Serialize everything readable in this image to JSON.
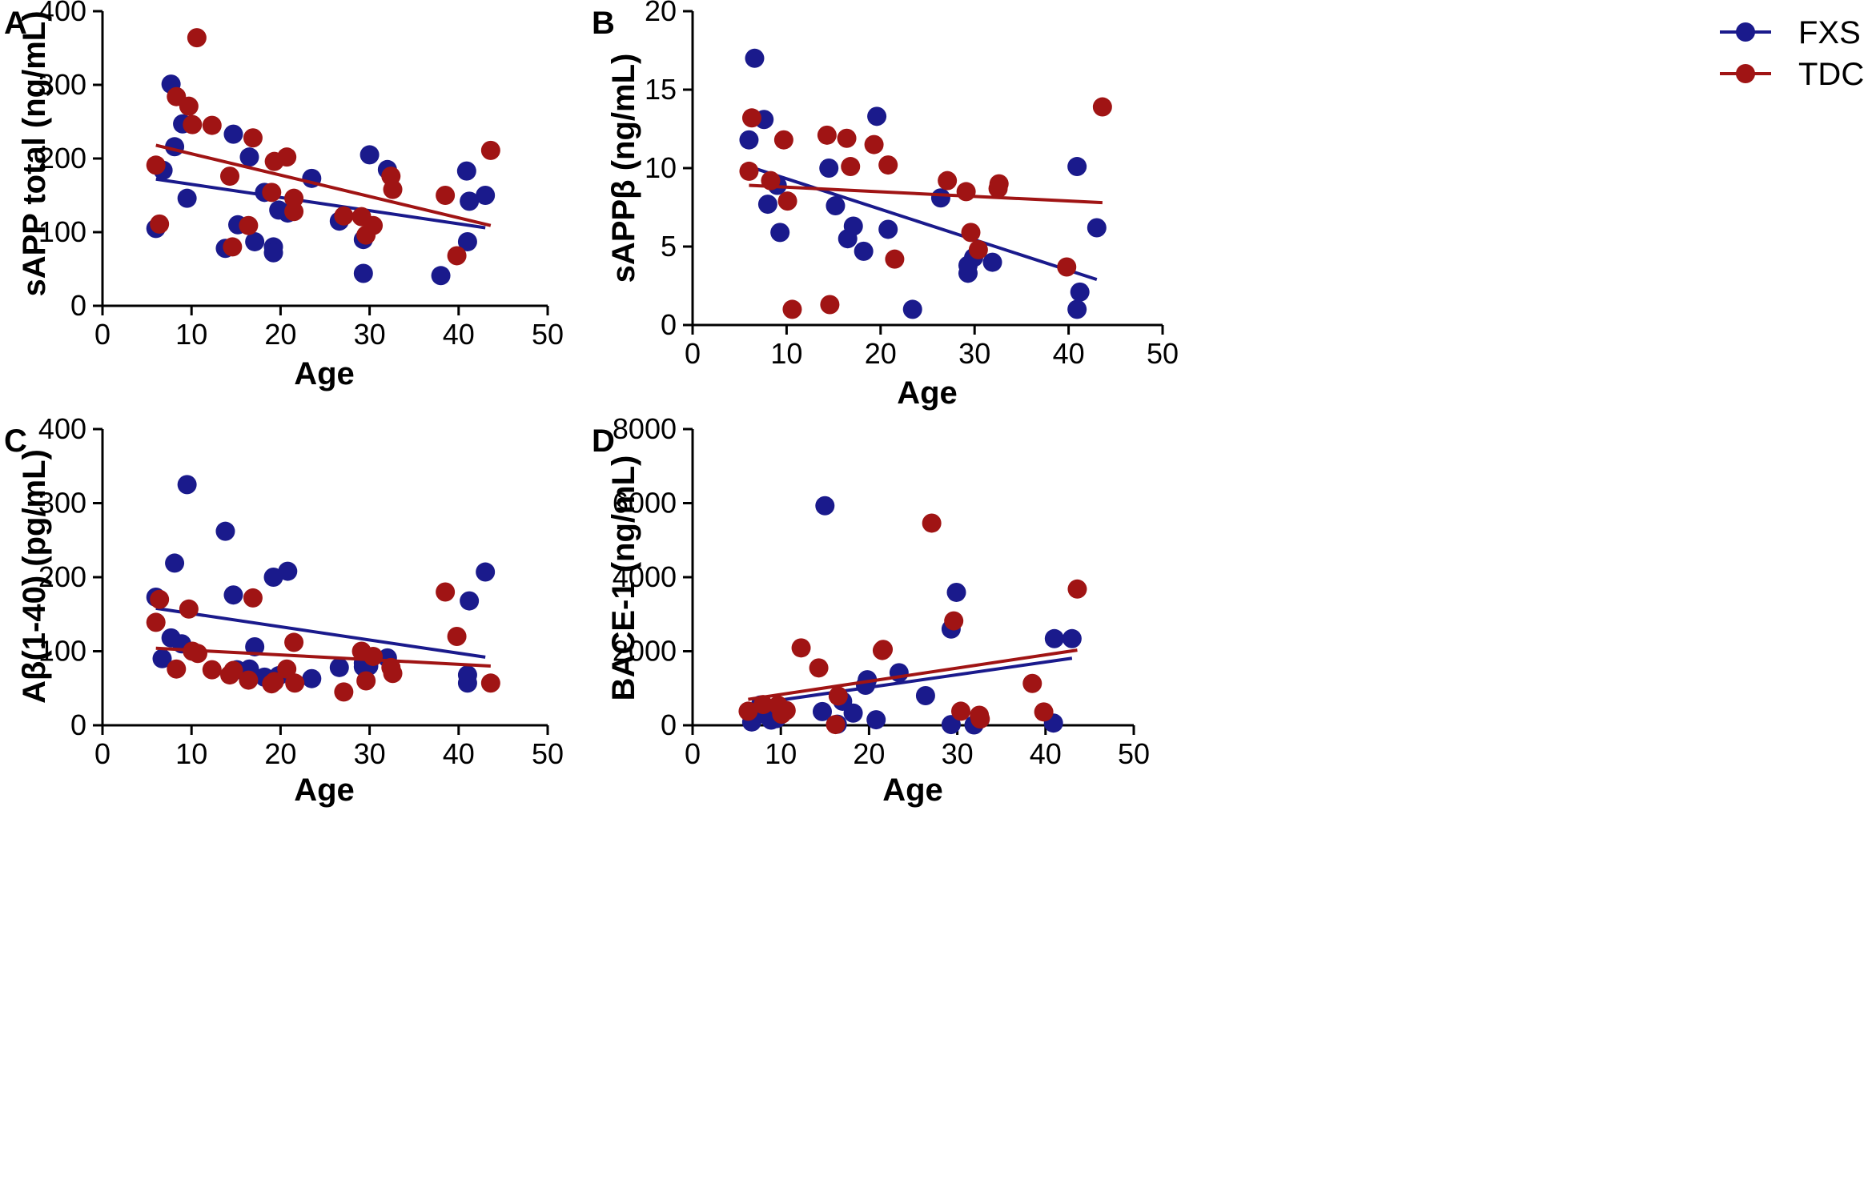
{
  "legend": {
    "series": [
      {
        "name": "FXS",
        "color": "#1a1a8c"
      },
      {
        "name": "TDC",
        "color": "#a01414"
      }
    ]
  },
  "chart_data": [
    {
      "panel": "A",
      "type": "scatter",
      "title": "",
      "xlabel": "Age",
      "ylabel": "sAPP total (ng/mL)",
      "xlim": [
        0,
        50
      ],
      "ylim": [
        0,
        400
      ],
      "xticks": [
        "0",
        "10",
        "20",
        "30",
        "40",
        "50"
      ],
      "yticks": [
        "0",
        "100",
        "200",
        "300",
        "400"
      ],
      "series": [
        {
          "name": "FXS",
          "color": "#1a1a8c",
          "points": [
            [
              6,
              105
            ],
            [
              6.8,
              184
            ],
            [
              7.7,
              301
            ],
            [
              8.1,
              216
            ],
            [
              9,
              247
            ],
            [
              9.5,
              146
            ],
            [
              13.8,
              78
            ],
            [
              14.7,
              233
            ],
            [
              15.2,
              110
            ],
            [
              16.5,
              202
            ],
            [
              17.1,
              87
            ],
            [
              18.2,
              154
            ],
            [
              19.2,
              80
            ],
            [
              19.2,
              72
            ],
            [
              19.8,
              130
            ],
            [
              20.8,
              126
            ],
            [
              23.5,
              173
            ],
            [
              26.6,
              115
            ],
            [
              29.3,
              90
            ],
            [
              29.3,
              44
            ],
            [
              30,
              205
            ],
            [
              32,
              185
            ],
            [
              38,
              41
            ],
            [
              40.9,
              183
            ],
            [
              41.2,
              142
            ],
            [
              41,
              87
            ],
            [
              43,
              150
            ]
          ],
          "trend": [
            [
              6,
              172
            ],
            [
              43,
              106
            ]
          ]
        },
        {
          "name": "TDC",
          "color": "#a01414",
          "points": [
            [
              6,
              191
            ],
            [
              6.4,
              111
            ],
            [
              8.3,
              284
            ],
            [
              9.7,
              271
            ],
            [
              10.1,
              246
            ],
            [
              10.6,
              364
            ],
            [
              12.3,
              245
            ],
            [
              14.3,
              176
            ],
            [
              14.6,
              80
            ],
            [
              16.4,
              109
            ],
            [
              16.9,
              228
            ],
            [
              19,
              154
            ],
            [
              19.3,
              196
            ],
            [
              20.7,
              202
            ],
            [
              21.5,
              146
            ],
            [
              21.5,
              128
            ],
            [
              27.1,
              122
            ],
            [
              29.1,
              121
            ],
            [
              29.6,
              96
            ],
            [
              30.4,
              109
            ],
            [
              32.4,
              176
            ],
            [
              32.6,
              158
            ],
            [
              38.5,
              150
            ],
            [
              39.8,
              68
            ],
            [
              43.6,
              211
            ]
          ],
          "trend": [
            [
              6,
              218
            ],
            [
              43.6,
              109
            ]
          ]
        }
      ]
    },
    {
      "panel": "B",
      "type": "scatter",
      "title": "",
      "xlabel": "Age",
      "ylabel": "sAPPβ (ng/mL)",
      "xlim": [
        0,
        50
      ],
      "ylim": [
        0,
        20
      ],
      "xticks": [
        "0",
        "10",
        "20",
        "30",
        "40",
        "50"
      ],
      "yticks": [
        "0",
        "5",
        "10",
        "15",
        "20"
      ],
      "series": [
        {
          "name": "FXS",
          "color": "#1a1a8c",
          "points": [
            [
              6,
              11.8
            ],
            [
              6.6,
              17
            ],
            [
              7.6,
              13.1
            ],
            [
              8,
              7.7
            ],
            [
              9,
              8.9
            ],
            [
              9.3,
              5.9
            ],
            [
              14.5,
              10
            ],
            [
              15.2,
              7.6
            ],
            [
              16.5,
              5.5
            ],
            [
              17.1,
              6.3
            ],
            [
              18.2,
              4.7
            ],
            [
              19.6,
              13.3
            ],
            [
              20.8,
              6.1
            ],
            [
              23.4,
              1
            ],
            [
              26.4,
              8.1
            ],
            [
              29.3,
              3.3
            ],
            [
              29.3,
              3.8
            ],
            [
              29.9,
              4.3
            ],
            [
              31.9,
              4
            ],
            [
              40.9,
              10.1
            ],
            [
              41.2,
              2.1
            ],
            [
              40.9,
              1
            ],
            [
              43,
              6.2
            ]
          ],
          "trend": [
            [
              6,
              10.1
            ],
            [
              43,
              2.9
            ]
          ]
        },
        {
          "name": "TDC",
          "color": "#a01414",
          "points": [
            [
              6,
              9.8
            ],
            [
              6.3,
              13.2
            ],
            [
              8.3,
              9.2
            ],
            [
              9.7,
              11.8
            ],
            [
              10.1,
              7.9
            ],
            [
              10.6,
              1
            ],
            [
              14.3,
              12.1
            ],
            [
              14.6,
              1.3
            ],
            [
              16.4,
              11.9
            ],
            [
              16.8,
              10.1
            ],
            [
              19.3,
              11.5
            ],
            [
              20.8,
              10.2
            ],
            [
              21.5,
              4.2
            ],
            [
              27.1,
              9.2
            ],
            [
              29.1,
              8.5
            ],
            [
              29.6,
              5.9
            ],
            [
              30.4,
              4.8
            ],
            [
              32.5,
              8.7
            ],
            [
              32.6,
              9
            ],
            [
              39.8,
              3.7
            ],
            [
              43.6,
              13.9
            ]
          ],
          "trend": [
            [
              6,
              8.9
            ],
            [
              43.6,
              7.8
            ]
          ]
        }
      ]
    },
    {
      "panel": "C",
      "type": "scatter",
      "title": "",
      "xlabel": "Age",
      "ylabel": "Aβ(1-40) (pg/mL)",
      "xlim": [
        0,
        50
      ],
      "ylim": [
        0,
        400
      ],
      "xticks": [
        "0",
        "10",
        "20",
        "30",
        "40",
        "50"
      ],
      "yticks": [
        "0",
        "100",
        "200",
        "300",
        "400"
      ],
      "series": [
        {
          "name": "FXS",
          "color": "#1a1a8c",
          "points": [
            [
              6,
              173
            ],
            [
              6.7,
              90
            ],
            [
              7.7,
              118
            ],
            [
              8.1,
              219
            ],
            [
              8.9,
              110
            ],
            [
              9.5,
              325
            ],
            [
              13.8,
              262
            ],
            [
              14.7,
              176
            ],
            [
              15.1,
              75
            ],
            [
              16.5,
              76
            ],
            [
              17.1,
              106
            ],
            [
              18.2,
              65
            ],
            [
              19.2,
              200
            ],
            [
              19.8,
              67
            ],
            [
              20.8,
              208
            ],
            [
              23.5,
              63
            ],
            [
              26.6,
              78
            ],
            [
              29.3,
              84
            ],
            [
              29.3,
              79
            ],
            [
              29.9,
              80
            ],
            [
              32,
              91
            ],
            [
              41,
              68
            ],
            [
              41,
              57
            ],
            [
              41.2,
              168
            ],
            [
              43,
              207
            ]
          ],
          "trend": [
            [
              6,
              158
            ],
            [
              43,
              92
            ]
          ]
        },
        {
          "name": "TDC",
          "color": "#a01414",
          "points": [
            [
              6,
              139
            ],
            [
              6.4,
              170
            ],
            [
              8.3,
              76
            ],
            [
              9.7,
              157
            ],
            [
              10.1,
              100
            ],
            [
              10.7,
              97
            ],
            [
              12.3,
              75
            ],
            [
              14.3,
              68
            ],
            [
              14.7,
              74
            ],
            [
              16.4,
              61
            ],
            [
              16.9,
              172
            ],
            [
              19,
              56
            ],
            [
              19.3,
              59
            ],
            [
              20.7,
              76
            ],
            [
              21.5,
              112
            ],
            [
              21.6,
              57
            ],
            [
              27.1,
              45
            ],
            [
              29.1,
              100
            ],
            [
              29.6,
              60
            ],
            [
              30.4,
              93
            ],
            [
              32.4,
              78
            ],
            [
              32.6,
              70
            ],
            [
              38.5,
              180
            ],
            [
              39.8,
              120
            ],
            [
              43.6,
              57
            ]
          ],
          "trend": [
            [
              6,
              104
            ],
            [
              43.6,
              80
            ]
          ]
        }
      ]
    },
    {
      "panel": "D",
      "type": "scatter",
      "title": "",
      "xlabel": "Age",
      "ylabel": "BACE-1 (ng/mL)",
      "xlim": [
        0,
        50
      ],
      "ylim": [
        0,
        8000
      ],
      "xticks": [
        "0",
        "10",
        "20",
        "30",
        "40",
        "50"
      ],
      "yticks": [
        "0",
        "2000",
        "4000",
        "6000",
        "8000"
      ],
      "series": [
        {
          "name": "FXS",
          "color": "#1a1a8c",
          "points": [
            [
              6.7,
              90
            ],
            [
              7.7,
              550
            ],
            [
              8.1,
              300
            ],
            [
              8.9,
              140
            ],
            [
              9.5,
              180
            ],
            [
              15,
              5930
            ],
            [
              14.7,
              370
            ],
            [
              16.4,
              30
            ],
            [
              17,
              650
            ],
            [
              18.2,
              330
            ],
            [
              19.6,
              1080
            ],
            [
              19.8,
              1230
            ],
            [
              20.8,
              150
            ],
            [
              23.4,
              1420
            ],
            [
              26.4,
              800
            ],
            [
              29.3,
              2600
            ],
            [
              29.3,
              20
            ],
            [
              29.9,
              3590
            ],
            [
              31.9,
              10
            ],
            [
              41,
              2340
            ],
            [
              40.9,
              60
            ],
            [
              43,
              2340
            ]
          ],
          "trend": [
            [
              6.7,
              570
            ],
            [
              43,
              1810
            ]
          ]
        },
        {
          "name": "TDC",
          "color": "#a01414",
          "points": [
            [
              6.3,
              380
            ],
            [
              8,
              560
            ],
            [
              9.7,
              540
            ],
            [
              10.1,
              300
            ],
            [
              10.6,
              400
            ],
            [
              12.3,
              2090
            ],
            [
              14.3,
              1550
            ],
            [
              16.2,
              20
            ],
            [
              16.5,
              790
            ],
            [
              21.5,
              2020
            ],
            [
              21.6,
              2050
            ],
            [
              27.1,
              5460
            ],
            [
              29.6,
              2820
            ],
            [
              30.4,
              380
            ],
            [
              32.5,
              270
            ],
            [
              32.6,
              170
            ],
            [
              38.5,
              1130
            ],
            [
              39.8,
              360
            ],
            [
              43.6,
              3680
            ]
          ],
          "trend": [
            [
              6.3,
              700
            ],
            [
              43.6,
              2030
            ]
          ]
        }
      ]
    }
  ]
}
